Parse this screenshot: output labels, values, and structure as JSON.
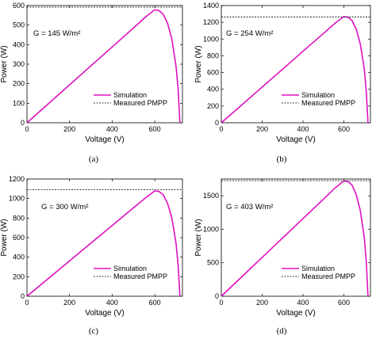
{
  "colors": {
    "simulation": "#e010c0",
    "measured": "#000000",
    "axes": "#000000",
    "background": "#ffffff"
  },
  "chart_data": [
    {
      "type": "line",
      "panel_label": "(a)",
      "annotation": "G = 145 W/m²",
      "xlabel": "Voltage (V)",
      "ylabel": "Power (W)",
      "xlim": [
        0,
        730
      ],
      "ylim": [
        0,
        600
      ],
      "xticks": [
        0,
        200,
        400,
        600
      ],
      "yticks": [
        0,
        100,
        200,
        300,
        400,
        500,
        600
      ],
      "xtick_labels": [
        "0",
        "200",
        "400",
        "600"
      ],
      "ytick_labels": [
        "0",
        "100",
        "200",
        "300",
        "400",
        "500",
        "600"
      ],
      "legend_position": "lower-right",
      "series": [
        {
          "name": "Simulation",
          "style": "solid",
          "x": [
            0,
            100,
            200,
            300,
            400,
            500,
            560,
            600,
            620,
            640,
            660,
            680,
            700,
            710,
            718
          ],
          "y": [
            0,
            97,
            194,
            291,
            388,
            485,
            545,
            578,
            574,
            555,
            510,
            430,
            290,
            170,
            0
          ]
        },
        {
          "name": "Measured PMPP",
          "style": "dashed",
          "x": [
            0,
            730
          ],
          "y": [
            592,
            592
          ]
        }
      ]
    },
    {
      "type": "line",
      "panel_label": "(b)",
      "annotation": "G = 254 W/m²",
      "xlabel": "Voltage (V)",
      "ylabel": "Power (W)",
      "xlim": [
        0,
        730
      ],
      "ylim": [
        0,
        1400
      ],
      "xticks": [
        0,
        200,
        400,
        600
      ],
      "yticks": [
        0,
        200,
        400,
        600,
        800,
        1000,
        1200,
        1400
      ],
      "xtick_labels": [
        "0",
        "200",
        "400",
        "600"
      ],
      "ytick_labels": [
        "0",
        "200",
        "400",
        "600",
        "800",
        "1000",
        "1200",
        "1400"
      ],
      "legend_position": "lower-right",
      "series": [
        {
          "name": "Simulation",
          "style": "solid",
          "x": [
            0,
            100,
            200,
            300,
            400,
            500,
            560,
            600,
            620,
            640,
            660,
            680,
            700,
            710,
            718
          ],
          "y": [
            0,
            213,
            427,
            640,
            854,
            1067,
            1196,
            1268,
            1260,
            1220,
            1120,
            945,
            640,
            370,
            0
          ]
        },
        {
          "name": "Measured PMPP",
          "style": "dashed",
          "x": [
            0,
            730
          ],
          "y": [
            1265,
            1265
          ]
        }
      ]
    },
    {
      "type": "line",
      "panel_label": "(c)",
      "annotation": "G = 300 W/m²",
      "xlabel": "Voltage (V)",
      "ylabel": "Power (W)",
      "xlim": [
        0,
        730
      ],
      "ylim": [
        0,
        1200
      ],
      "xticks": [
        0,
        200,
        400,
        600
      ],
      "yticks": [
        0,
        200,
        400,
        600,
        800,
        1000,
        1200
      ],
      "xtick_labels": [
        "0",
        "200",
        "400",
        "600"
      ],
      "ytick_labels": [
        "0",
        "200",
        "400",
        "600",
        "800",
        "1000",
        "1200"
      ],
      "legend_position": "lower-right",
      "series": [
        {
          "name": "Simulation",
          "style": "solid",
          "x": [
            0,
            100,
            200,
            300,
            400,
            500,
            560,
            600,
            620,
            640,
            660,
            680,
            700,
            710,
            718
          ],
          "y": [
            0,
            181,
            362,
            543,
            724,
            905,
            1013,
            1078,
            1072,
            1038,
            952,
            803,
            543,
            315,
            0
          ]
        },
        {
          "name": "Measured PMPP",
          "style": "dashed",
          "x": [
            0,
            730
          ],
          "y": [
            1090,
            1090
          ]
        }
      ]
    },
    {
      "type": "line",
      "panel_label": "(d)",
      "annotation": "G = 403 W/m²",
      "xlabel": "Voltage (V)",
      "ylabel": "Power (W)",
      "xlim": [
        0,
        730
      ],
      "ylim": [
        0,
        1750
      ],
      "xticks": [
        0,
        200,
        400,
        600
      ],
      "yticks": [
        0,
        500,
        1000,
        1500
      ],
      "xtick_labels": [
        "0",
        "200",
        "400",
        "600"
      ],
      "ytick_labels": [
        "0",
        "500",
        "1000",
        "1500"
      ],
      "legend_position": "lower-right",
      "series": [
        {
          "name": "Simulation",
          "style": "solid",
          "x": [
            0,
            100,
            200,
            300,
            400,
            500,
            560,
            600,
            620,
            640,
            660,
            680,
            700,
            710,
            718
          ],
          "y": [
            0,
            290,
            580,
            870,
            1160,
            1450,
            1625,
            1722,
            1712,
            1660,
            1520,
            1285,
            870,
            505,
            0
          ]
        },
        {
          "name": "Measured PMPP",
          "style": "dashed",
          "x": [
            0,
            730
          ],
          "y": [
            1725,
            1725
          ]
        }
      ]
    }
  ]
}
